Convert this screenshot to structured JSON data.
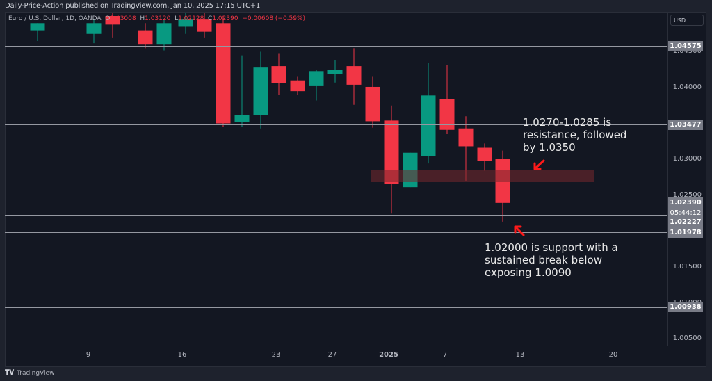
{
  "header": {
    "published": "Daily-Price-Action published on TradingView.com, Jan 10, 2025 17:15 UTC+1"
  },
  "legend": {
    "symbol": "Euro / U.S. Dollar, 1D, OANDA",
    "o_label": "O",
    "o_value": "1.03008",
    "h_label": "H",
    "h_value": "1.03120",
    "l_label": "L",
    "l_value": "1.02128",
    "c_label": "C",
    "c_value": "1.02390",
    "change": "−0.00608 (−0.59%)"
  },
  "axis": {
    "currency": "USD",
    "y_ticks": [
      "1.04500",
      "1.04000",
      "1.03000",
      "1.02500",
      "1.01500",
      "1.01000",
      "1.00500"
    ],
    "x_ticks": [
      "9",
      "16",
      "23",
      "27",
      "2025",
      "7",
      "13",
      "20"
    ]
  },
  "price_labels": {
    "l1": "1.04575",
    "l2": "1.03477",
    "last_price": "1.02390",
    "countdown": "05:44:12",
    "l3": "1.02227",
    "l4": "1.01978",
    "l5": "1.00938"
  },
  "annotations": {
    "resistance": [
      "1.0270-1.0285 is",
      "resistance, followed",
      "by 1.0350"
    ],
    "support": [
      "1.02000 is support with a",
      "sustained break below",
      "exposing 1.0090"
    ]
  },
  "colors": {
    "up": "#089981",
    "down": "#f23645",
    "background": "#131722",
    "arrow": "#ff1a1a"
  },
  "brand": "TradingView",
  "chart_data": {
    "type": "candlestick",
    "title": "Euro / U.S. Dollar, 1D, OANDA",
    "ylabel": "USD",
    "ylim": [
      1.0025,
      1.0485
    ],
    "x_ticks": [
      "9",
      "16",
      "23",
      "27",
      "2025",
      "7",
      "13",
      "20"
    ],
    "horizontal_levels": [
      1.04575,
      1.03477,
      1.02227,
      1.01978,
      1.00938
    ],
    "zone": [
      1.027,
      1.0285
    ],
    "candles": [
      {
        "o": 1.048,
        "h": 1.049,
        "l": 1.0465,
        "c": 1.049
      },
      {
        "o": 1.0475,
        "h": 1.0495,
        "l": 1.0462,
        "c": 1.049
      },
      {
        "o": 1.05,
        "h": 1.051,
        "l": 1.047,
        "c": 1.0488
      },
      {
        "o": 1.048,
        "h": 1.049,
        "l": 1.0455,
        "c": 1.046
      },
      {
        "o": 1.046,
        "h": 1.0495,
        "l": 1.0452,
        "c": 1.049
      },
      {
        "o": 1.0485,
        "h": 1.051,
        "l": 1.0475,
        "c": 1.0495
      },
      {
        "o": 1.0495,
        "h": 1.0505,
        "l": 1.047,
        "c": 1.0478
      },
      {
        "o": 1.049,
        "h": 1.05,
        "l": 1.0345,
        "c": 1.035
      },
      {
        "o": 1.0352,
        "h": 1.0445,
        "l": 1.0345,
        "c": 1.0362
      },
      {
        "o": 1.0362,
        "h": 1.045,
        "l": 1.0343,
        "c": 1.0428
      },
      {
        "o": 1.043,
        "h": 1.0448,
        "l": 1.039,
        "c": 1.0406
      },
      {
        "o": 1.041,
        "h": 1.0415,
        "l": 1.039,
        "c": 1.0395
      },
      {
        "o": 1.0403,
        "h": 1.0425,
        "l": 1.0382,
        "c": 1.0423
      },
      {
        "o": 1.0419,
        "h": 1.0438,
        "l": 1.0407,
        "c": 1.0425
      },
      {
        "o": 1.043,
        "h": 1.0455,
        "l": 1.0376,
        "c": 1.0404
      },
      {
        "o": 1.0401,
        "h": 1.0415,
        "l": 1.0344,
        "c": 1.0353
      },
      {
        "o": 1.0354,
        "h": 1.0375,
        "l": 1.0224,
        "c": 1.0266
      },
      {
        "o": 1.0261,
        "h": 1.0309,
        "l": 1.0261,
        "c": 1.0309
      },
      {
        "o": 1.0304,
        "h": 1.0435,
        "l": 1.0294,
        "c": 1.0389
      },
      {
        "o": 1.0384,
        "h": 1.0432,
        "l": 1.0335,
        "c": 1.0341
      },
      {
        "o": 1.0343,
        "h": 1.036,
        "l": 1.027,
        "c": 1.0318
      },
      {
        "o": 1.0316,
        "h": 1.0322,
        "l": 1.0284,
        "c": 1.0298
      },
      {
        "o": 1.03008,
        "h": 1.0312,
        "l": 1.02128,
        "c": 1.0239
      }
    ]
  }
}
